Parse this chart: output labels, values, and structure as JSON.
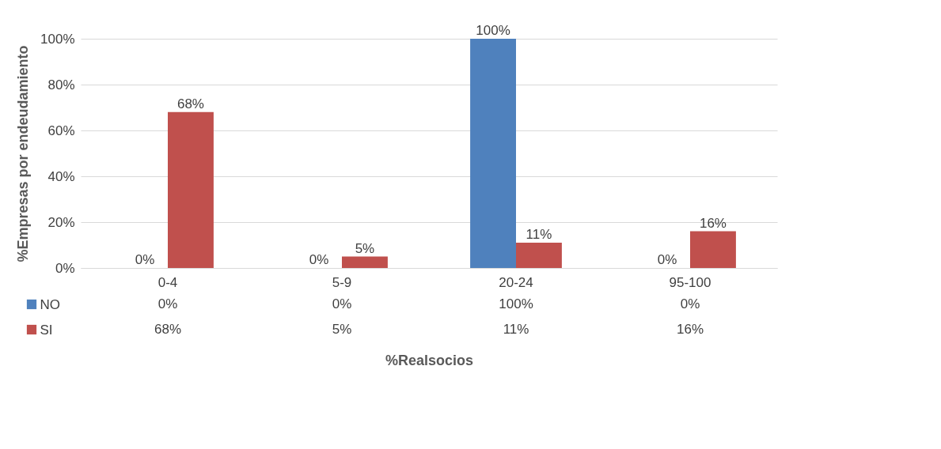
{
  "chart_data": {
    "type": "bar",
    "xlabel": "%Realsocios",
    "ylabel": "%Empresas por endeudamiento",
    "categories": [
      "0-4",
      "5-9",
      "20-24",
      "95-100"
    ],
    "series": [
      {
        "name": "NO",
        "color": "#4f81bd",
        "values": [
          0,
          0,
          100,
          0
        ],
        "value_labels": [
          "0%",
          "0%",
          "100%",
          "0%"
        ]
      },
      {
        "name": "SI",
        "color": "#c0504d",
        "values": [
          68,
          5,
          11,
          16
        ],
        "value_labels": [
          "68%",
          "5%",
          "11%",
          "16%"
        ]
      }
    ],
    "ylim": [
      0,
      100
    ],
    "yticks": [
      {
        "value": 0,
        "label": "0%"
      },
      {
        "value": 20,
        "label": "20%"
      },
      {
        "value": 40,
        "label": "40%"
      },
      {
        "value": 60,
        "label": "60%"
      },
      {
        "value": 80,
        "label": "80%"
      },
      {
        "value": 100,
        "label": "100%"
      }
    ],
    "grid": "y",
    "legend": "bottom"
  }
}
